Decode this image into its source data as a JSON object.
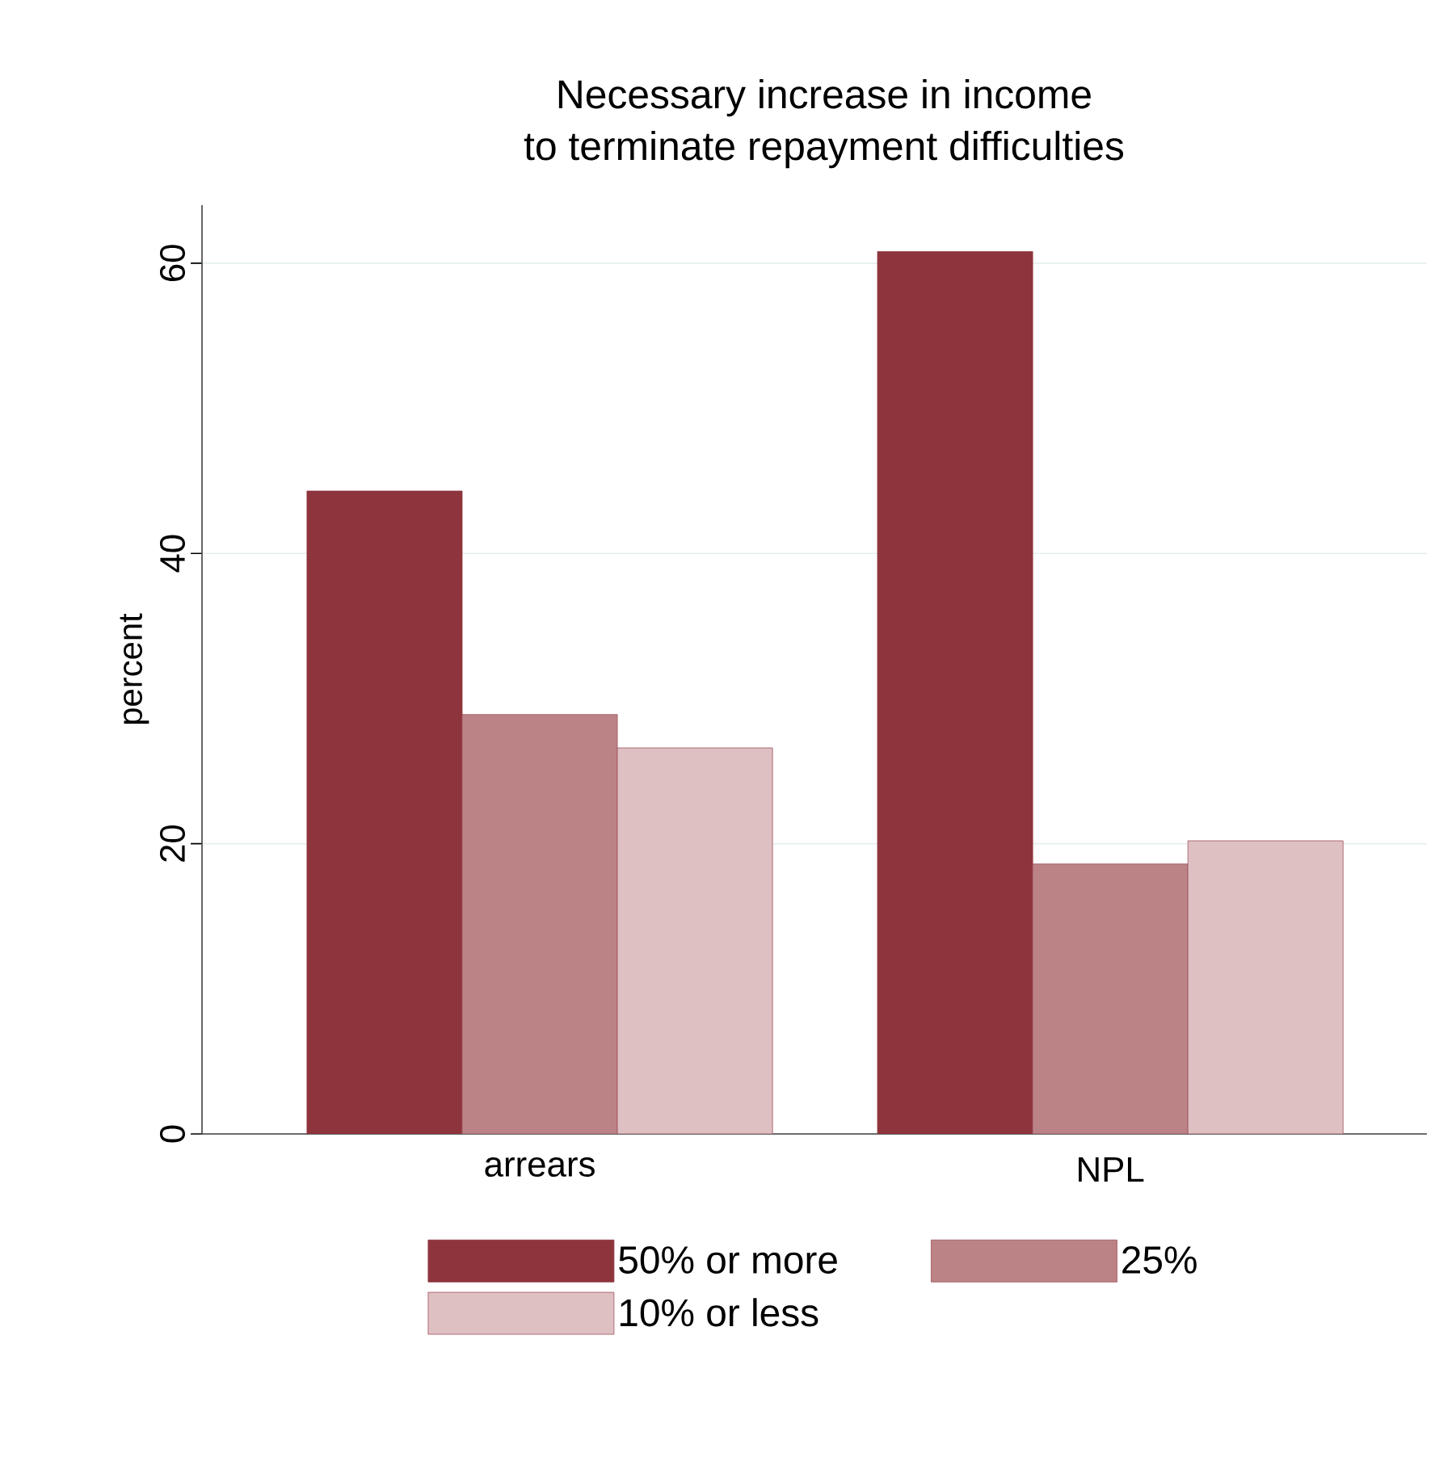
{
  "chart_data": {
    "type": "bar",
    "title": "Necessary increase in income",
    "subtitle": "to terminate repayment difficulties",
    "ylabel": "percent",
    "categories": [
      "arrears",
      "NPL"
    ],
    "series": [
      {
        "name": "50% or more",
        "color": "#8e343c",
        "values": [
          44.3,
          60.8
        ]
      },
      {
        "name": "25%",
        "color": "#bb8386",
        "values": [
          28.9,
          18.6
        ]
      },
      {
        "name": "10% or less",
        "color": "#dec0c3",
        "values": [
          26.6,
          20.2
        ]
      }
    ],
    "ylim": [
      0,
      64
    ],
    "yticks": [
      0,
      20,
      40,
      60
    ],
    "grid": "y",
    "legend": "bottom"
  }
}
